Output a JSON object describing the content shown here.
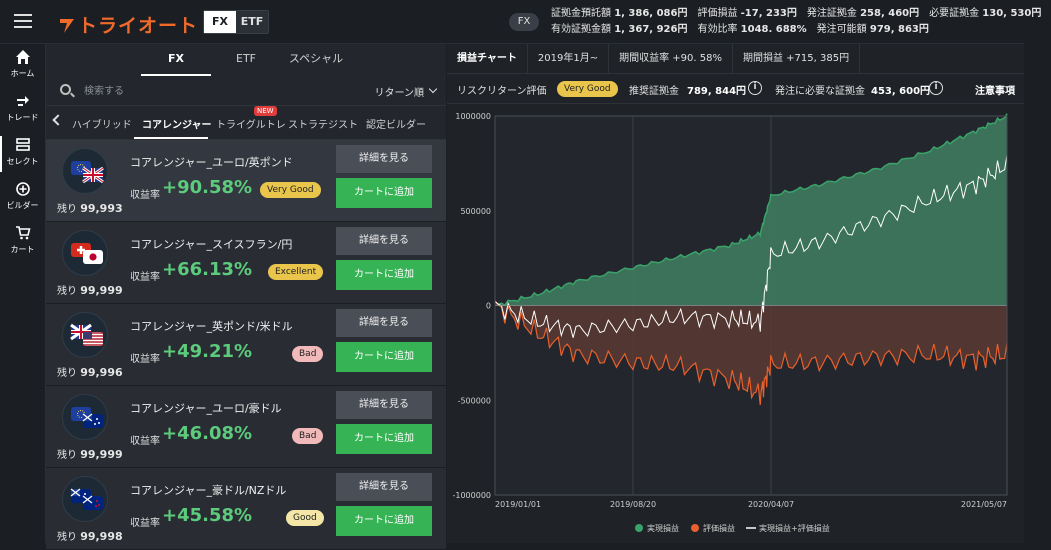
{
  "header": {
    "logo_text": "トライオート",
    "mode_fx": "FX",
    "mode_etf": "ETF",
    "current_badge": "FX",
    "stats_row1": [
      {
        "label": "証拠金預託額",
        "value": "1, 386, 086円"
      },
      {
        "label": "評価損益",
        "value": "-17, 233円"
      },
      {
        "label": "発注証拠金",
        "value": "258, 460円"
      },
      {
        "label": "必要証拠金",
        "value": "130, 530円"
      }
    ],
    "stats_row2": [
      {
        "label": "有効証拠金額",
        "value": "1, 367, 926円"
      },
      {
        "label": "有効比率",
        "value": "1048. 688%"
      },
      {
        "label": "発注可能額",
        "value": "979, 863円"
      }
    ]
  },
  "nav": [
    {
      "label": "ホーム",
      "icon": "home-icon"
    },
    {
      "label": "トレード",
      "icon": "trade-icon"
    },
    {
      "label": "セレクト",
      "icon": "select-icon"
    },
    {
      "label": "ビルダー",
      "icon": "builder-icon"
    },
    {
      "label": "カート",
      "icon": "cart-icon"
    }
  ],
  "panel": {
    "tabs": [
      "FX",
      "ETF",
      "スペシャル"
    ],
    "search_placeholder": "検索する",
    "sort_label": "リターン順",
    "categories": [
      "ハイブリッド",
      "コアレンジャー",
      "トライグルトレ",
      "ストラテジスト",
      "認定ビルダー"
    ],
    "new_badge": "NEW",
    "return_label": "収益率",
    "remain_label": "残り",
    "detail_button": "詳細を見る",
    "cart_button": "カートに追加",
    "strategies": [
      {
        "name": "コアレンジャー_ユーロ/英ポンド",
        "remain": "99,993",
        "return": "+90.58%",
        "rating": "Very Good",
        "rating_color": "#e9c64b",
        "flag_a": "EU",
        "flag_b": "GB"
      },
      {
        "name": "コアレンジャー_スイスフラン/円",
        "remain": "99,999",
        "return": "+66.13%",
        "rating": "Excellent",
        "rating_color": "#e9c64b",
        "flag_a": "CH",
        "flag_b": "JP"
      },
      {
        "name": "コアレンジャー_英ポンド/米ドル",
        "remain": "99,996",
        "return": "+49.21%",
        "rating": "Bad",
        "rating_color": "#f1b9b9",
        "flag_a": "GB",
        "flag_b": "US"
      },
      {
        "name": "コアレンジャー_ユーロ/豪ドル",
        "remain": "99,999",
        "return": "+46.08%",
        "rating": "Bad",
        "rating_color": "#f1b9b9",
        "flag_a": "EU",
        "flag_b": "AU"
      },
      {
        "name": "コアレンジャー_豪ドル/NZドル",
        "remain": "99,998",
        "return": "+45.58%",
        "rating": "Good",
        "rating_color": "#f3e6a6",
        "flag_a": "AU",
        "flag_b": "NZ"
      }
    ]
  },
  "right": {
    "tabs": [
      "損益チャート",
      "2019年1月~",
      "期間収益率 +90. 58%",
      "期間損益 +715, 385円"
    ],
    "risk_label": "リスクリターン評価",
    "risk_badge": "Very Good",
    "recommended_label": "推奨証拠金",
    "recommended_value": "789, 844円",
    "required_label": "発注に必要な証拠金",
    "required_value": "453, 600円",
    "notice": "注意事項"
  },
  "chart_data": {
    "type": "area",
    "title": "",
    "xlabel": "",
    "ylabel": "",
    "ylim": [
      -1000000,
      1000000
    ],
    "yticks": [
      "1000000",
      "500000",
      "0",
      "-500000",
      "-1000000"
    ],
    "xticks": [
      "2019/01/01",
      "2019/08/20",
      "2020/04/07",
      "2021/05/07"
    ],
    "grid": true,
    "legend_position": "bottom",
    "legend": [
      {
        "name": "実現損益",
        "color": "#3aa36a"
      },
      {
        "name": "評価損益",
        "color": "#e8602c"
      },
      {
        "name": "実現損益+評価損益",
        "color": "#ffffff"
      }
    ],
    "x": [
      "2019/01/01",
      "2019/03/15",
      "2019/05/20",
      "2019/08/20",
      "2019/11/10",
      "2020/02/01",
      "2020/03/20",
      "2020/04/07",
      "2020/07/01",
      "2020/10/01",
      "2021/01/01",
      "2021/03/15",
      "2021/05/07"
    ],
    "series": [
      {
        "name": "実現損益",
        "values": [
          0,
          60000,
          130000,
          200000,
          260000,
          320000,
          380000,
          580000,
          640000,
          720000,
          820000,
          920000,
          1000000
        ]
      },
      {
        "name": "評価損益",
        "values": [
          0,
          -150000,
          -260000,
          -300000,
          -320000,
          -390000,
          -470000,
          -310000,
          -300000,
          -270000,
          -260000,
          -280000,
          -260000
        ]
      },
      {
        "name": "実現損益+評価損益",
        "values": [
          0,
          -90000,
          -130000,
          -100000,
          -60000,
          -70000,
          -90000,
          270000,
          340000,
          450000,
          560000,
          640000,
          740000
        ]
      }
    ]
  }
}
